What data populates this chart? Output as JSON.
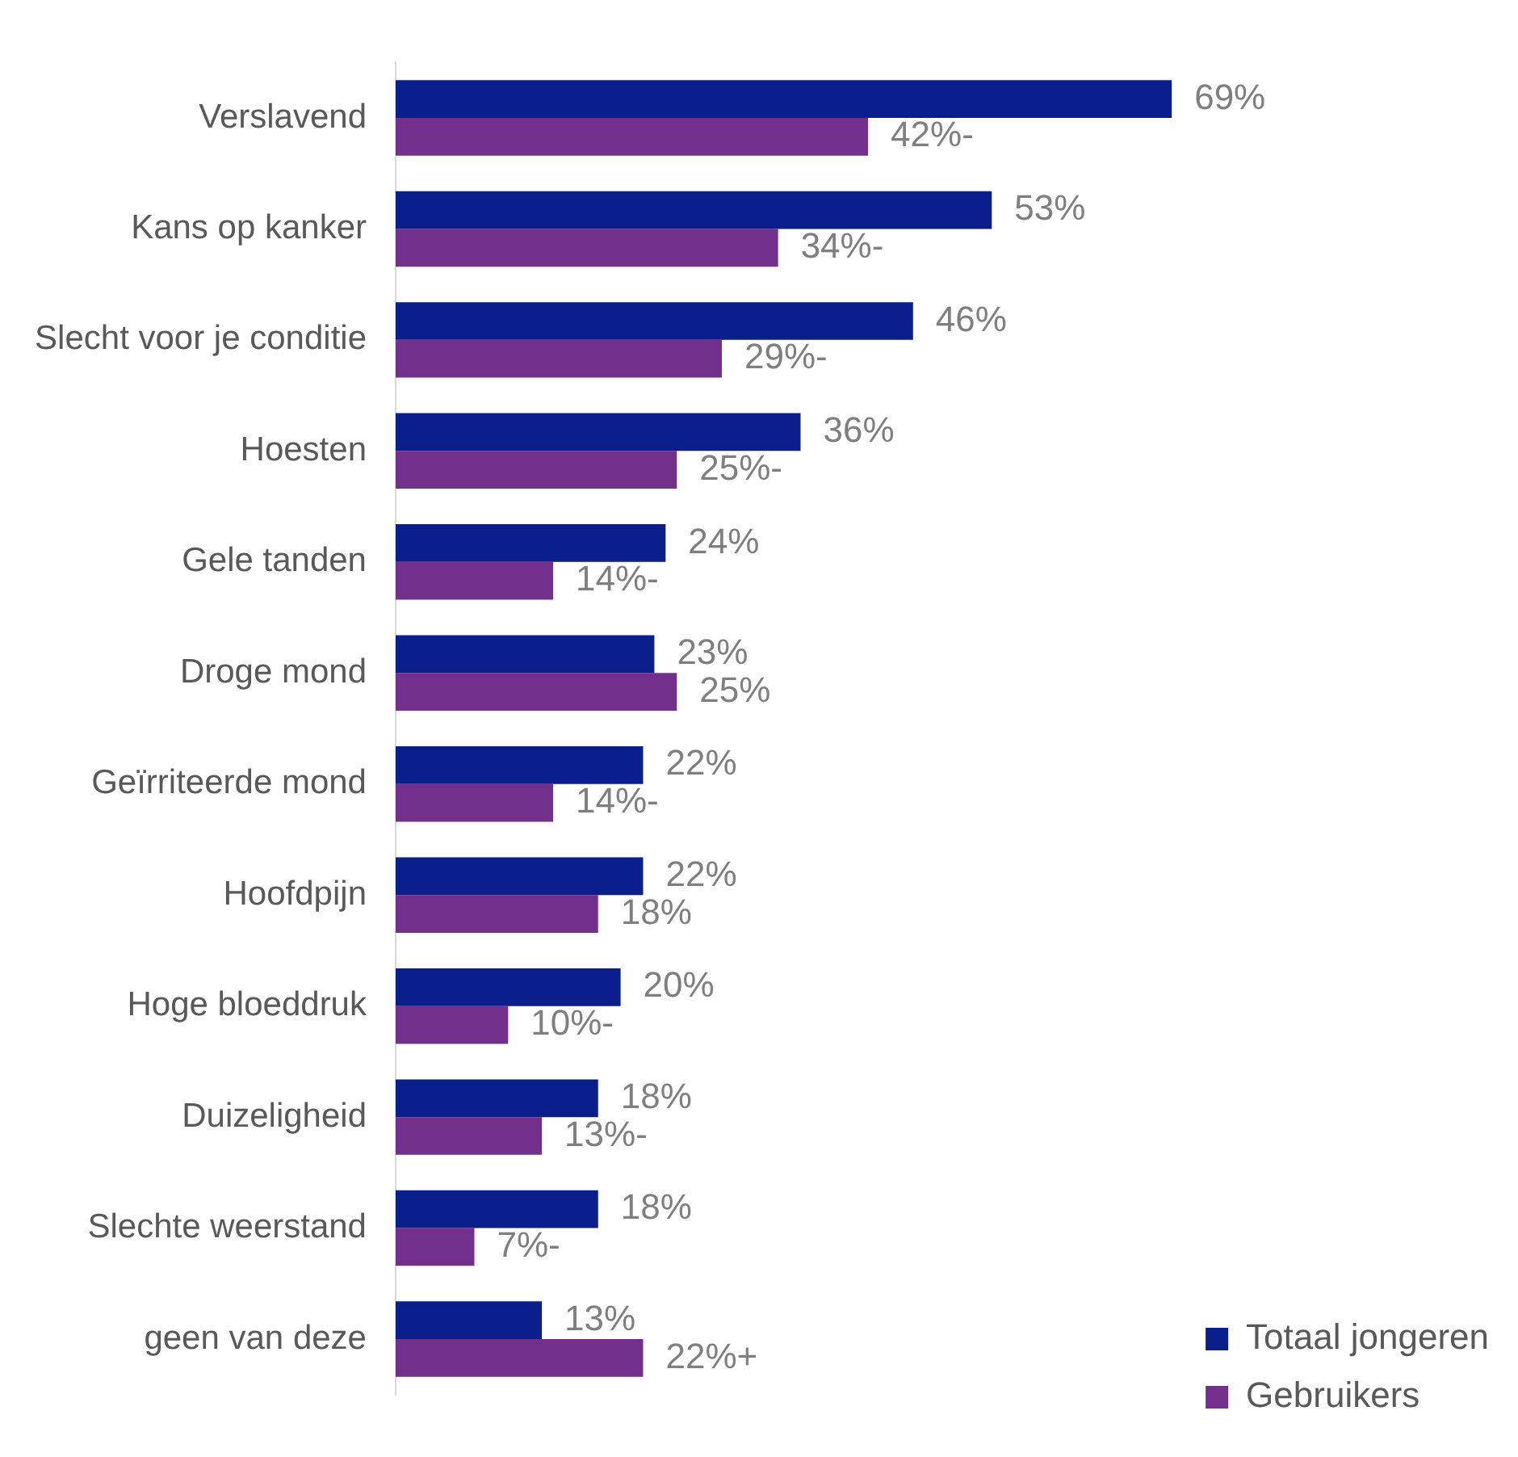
{
  "chart_data": {
    "type": "bar",
    "orientation": "horizontal",
    "legend": "bottom right",
    "categories": [
      "Verslavend",
      "Kans op kanker",
      "Slecht voor je conditie",
      "Hoesten",
      "Gele tanden",
      "Droge mond",
      "Geïrriteerde mond",
      "Hoofdpijn",
      "Hoge bloeddruk",
      "Duizeligheid",
      "Slechte weerstand",
      "geen van deze"
    ],
    "series": [
      {
        "name": "Totaal jongeren",
        "color": "#0a1e8c",
        "values": [
          69,
          53,
          46,
          36,
          24,
          23,
          22,
          22,
          20,
          18,
          18,
          13
        ],
        "value_labels": [
          "69%",
          "53%",
          "46%",
          "36%",
          "24%",
          "23%",
          "22%",
          "22%",
          "20%",
          "18%",
          "18%",
          "13%"
        ]
      },
      {
        "name": "Gebruikers",
        "color": "#722f8b",
        "values": [
          42,
          34,
          29,
          25,
          14,
          25,
          14,
          18,
          10,
          13,
          7,
          22
        ],
        "value_labels": [
          "42%-",
          "34%-",
          "29%-",
          "25%-",
          "14%-",
          "25%",
          "14%-",
          "18%",
          "10%-",
          "13%-",
          "7%-",
          "22%+"
        ]
      }
    ]
  }
}
